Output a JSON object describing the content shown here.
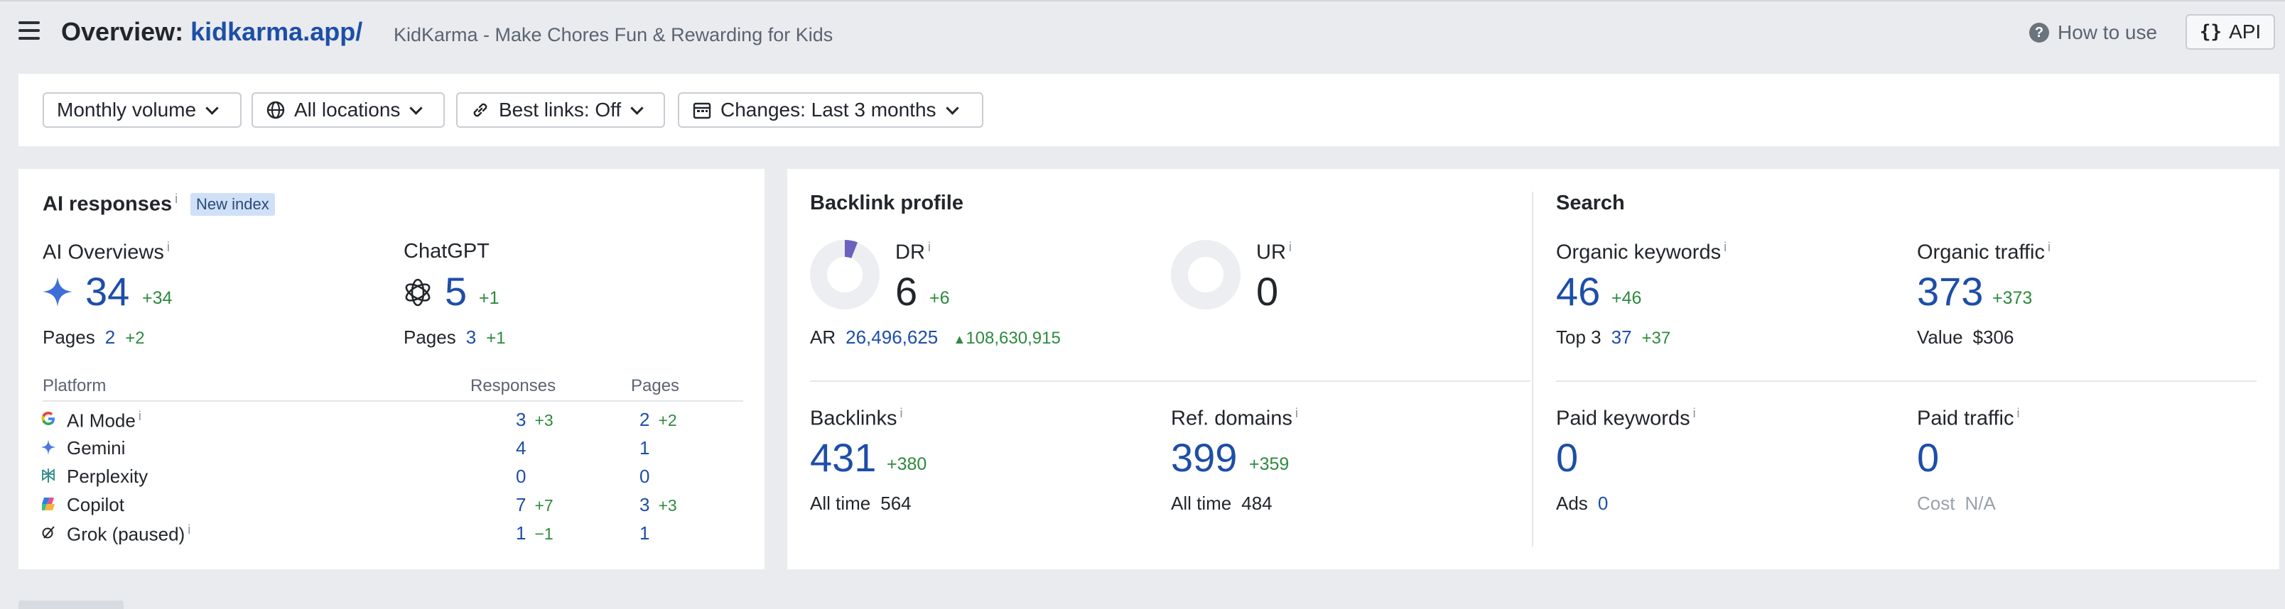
{
  "header": {
    "title_prefix": "Overview:",
    "domain": "kidkarma.app/",
    "subtitle": "KidKarma - Make Chores Fun & Rewarding for Kids",
    "how_to_use": "How to use",
    "api_label": "API"
  },
  "filters": {
    "volume": "Monthly volume",
    "locations": "All locations",
    "best_links": "Best links: Off",
    "changes": "Changes: Last 3 months"
  },
  "ai_responses": {
    "title": "AI responses",
    "info": "i",
    "badge": "New index",
    "overviews": {
      "label": "AI Overviews",
      "value": "34",
      "delta": "+34",
      "pages_label": "Pages",
      "pages": "2",
      "pages_delta": "+2"
    },
    "chatgpt": {
      "label": "ChatGPT",
      "value": "5",
      "delta": "+1",
      "pages_label": "Pages",
      "pages": "3",
      "pages_delta": "+1"
    },
    "table": {
      "headers": {
        "platform": "Platform",
        "responses": "Responses",
        "pages": "Pages"
      },
      "rows": [
        {
          "name": "AI Mode",
          "info": "i",
          "responses": "3",
          "responses_delta": "+3",
          "pages": "2",
          "pages_delta": "+2",
          "icon": "google-icon"
        },
        {
          "name": "Gemini",
          "info": "",
          "responses": "4",
          "responses_delta": "",
          "pages": "1",
          "pages_delta": "",
          "icon": "gemini-icon"
        },
        {
          "name": "Perplexity",
          "info": "",
          "responses": "0",
          "responses_delta": "",
          "pages": "0",
          "pages_delta": "",
          "icon": "perplexity-icon"
        },
        {
          "name": "Copilot",
          "info": "",
          "responses": "7",
          "responses_delta": "+7",
          "pages": "3",
          "pages_delta": "+3",
          "icon": "copilot-icon"
        },
        {
          "name": "Grok (paused)",
          "info": "i",
          "responses": "1",
          "responses_delta": "−1",
          "pages": "1",
          "pages_delta": "",
          "icon": "grok-icon"
        }
      ]
    }
  },
  "backlink_profile": {
    "title": "Backlink profile",
    "dr": {
      "label": "DR",
      "value": "6",
      "delta": "+6",
      "fill": 0.06
    },
    "ur": {
      "label": "UR",
      "value": "0",
      "fill": 0
    },
    "ar": {
      "label": "AR",
      "value": "26,496,625",
      "delta": "108,630,915"
    },
    "backlinks": {
      "label": "Backlinks",
      "value": "431",
      "delta": "+380",
      "alltime_label": "All time",
      "alltime": "564"
    },
    "ref_domains": {
      "label": "Ref. domains",
      "value": "399",
      "delta": "+359",
      "alltime_label": "All time",
      "alltime": "484"
    }
  },
  "search": {
    "title": "Search",
    "organic_keywords": {
      "label": "Organic keywords",
      "value": "46",
      "delta": "+46",
      "sub_label": "Top 3",
      "sub_value": "37",
      "sub_delta": "+37"
    },
    "organic_traffic": {
      "label": "Organic traffic",
      "value": "373",
      "delta": "+373",
      "sub_label": "Value",
      "sub_value": "$306"
    },
    "paid_keywords": {
      "label": "Paid keywords",
      "value": "0",
      "sub_label": "Ads",
      "sub_value": "0"
    },
    "paid_traffic": {
      "label": "Paid traffic",
      "value": "0",
      "sub_label": "Cost",
      "sub_value": "N/A"
    }
  },
  "colors": {
    "accent": "#1d4ea8",
    "positive": "#2d8a3e",
    "negative": "#c5362b",
    "badge": "#cfe0f7"
  }
}
